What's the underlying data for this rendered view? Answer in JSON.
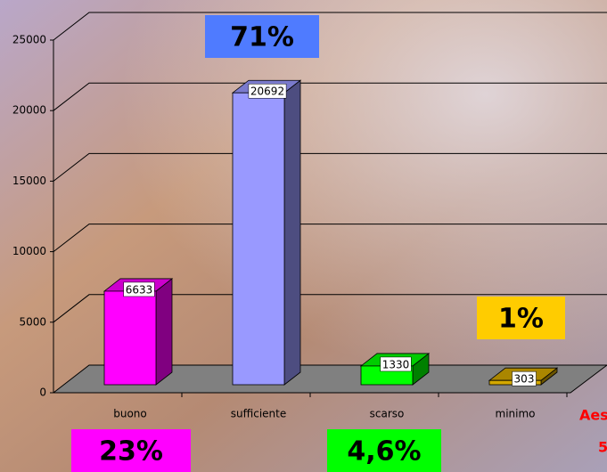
{
  "chart_data": {
    "type": "bar3d",
    "categories": [
      "buono",
      "sufficiente",
      "scarso",
      "minimo"
    ],
    "values": [
      6633,
      20692,
      1330,
      303
    ],
    "colors": [
      "#ff00ff",
      "#9999ff",
      "#00ff00",
      "#d4a800"
    ],
    "ylim": [
      0,
      25000
    ],
    "yticks": [
      0,
      5000,
      10000,
      15000,
      20000,
      25000
    ],
    "grid": true,
    "annotations": [
      {
        "text": "71%",
        "color": "#4f7bff"
      },
      {
        "text": "23%",
        "color": "#ff00ff"
      },
      {
        "text": "4,6%",
        "color": "#00ff00"
      },
      {
        "text": "1%",
        "color": "#ffcc00"
      },
      {
        "text": "Aes",
        "color": "#ff0000"
      },
      {
        "text": "5",
        "color": "#ff0000"
      }
    ]
  }
}
